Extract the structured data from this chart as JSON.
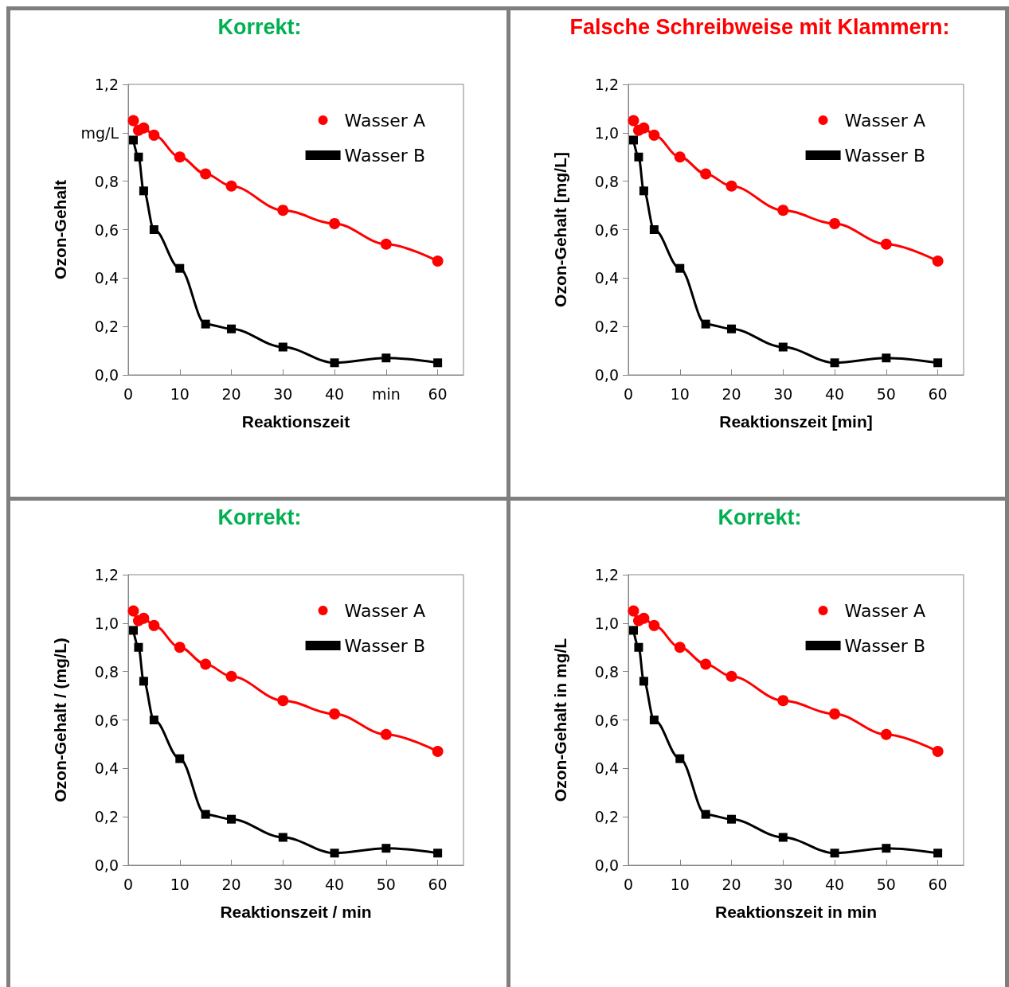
{
  "chart_data": [
    {
      "type": "line",
      "title": "Korrekt:",
      "xlabel": "Reaktionszeit",
      "ylabel": "Ozon-Gehalt",
      "x": [
        1,
        2,
        3,
        5,
        10,
        15,
        20,
        30,
        40,
        50,
        60
      ],
      "xlim": [
        0,
        65
      ],
      "ylim": [
        0,
        1.2
      ],
      "xticks": [
        0,
        10,
        20,
        30,
        40,
        {
          "value": 50,
          "label": "min"
        },
        60
      ],
      "yticks": [
        {
          "value": 0,
          "label": "0,0"
        },
        {
          "value": 0.2,
          "label": "0,2"
        },
        {
          "value": 0.4,
          "label": "0,4"
        },
        {
          "value": 0.6,
          "label": "0,6"
        },
        {
          "value": 0.8,
          "label": "0,8"
        },
        {
          "value": 1,
          "label": "mg/L"
        },
        {
          "value": 1.2,
          "label": "1,2"
        }
      ],
      "grid": false,
      "legend": "top right",
      "series": [
        {
          "name": "Wasser A",
          "color": "#ff0000",
          "marker": "circle",
          "values": [
            1.05,
            1.01,
            1.02,
            0.99,
            0.9,
            0.83,
            0.78,
            0.68,
            0.625,
            0.54,
            0.47
          ]
        },
        {
          "name": "Wasser B",
          "color": "#000000",
          "marker": "square",
          "values": [
            0.97,
            0.9,
            0.76,
            0.6,
            0.44,
            0.21,
            0.19,
            0.115,
            0.05,
            0.07,
            0.05
          ]
        }
      ]
    },
    {
      "type": "line",
      "title": "Falsche Schreibweise mit Klammern:",
      "xlabel": "Reaktionszeit [min]",
      "ylabel": "Ozon-Gehalt [mg/L]",
      "x": [
        1,
        2,
        3,
        5,
        10,
        15,
        20,
        30,
        40,
        50,
        60
      ],
      "xlim": [
        0,
        65
      ],
      "ylim": [
        0,
        1.2
      ],
      "xticks": [
        0,
        10,
        20,
        30,
        40,
        50,
        60
      ],
      "yticks": [
        {
          "value": 0,
          "label": "0,0"
        },
        {
          "value": 0.2,
          "label": "0,2"
        },
        {
          "value": 0.4,
          "label": "0,4"
        },
        {
          "value": 0.6,
          "label": "0,6"
        },
        {
          "value": 0.8,
          "label": "0,8"
        },
        {
          "value": 1,
          "label": "1,0"
        },
        {
          "value": 1.2,
          "label": "1,2"
        }
      ],
      "grid": false,
      "legend": "top right",
      "series": [
        {
          "name": "Wasser A",
          "color": "#ff0000",
          "marker": "circle",
          "values": [
            1.05,
            1.01,
            1.02,
            0.99,
            0.9,
            0.83,
            0.78,
            0.68,
            0.625,
            0.54,
            0.47
          ]
        },
        {
          "name": "Wasser B",
          "color": "#000000",
          "marker": "square",
          "values": [
            0.97,
            0.9,
            0.76,
            0.6,
            0.44,
            0.21,
            0.19,
            0.115,
            0.05,
            0.07,
            0.05
          ]
        }
      ]
    },
    {
      "type": "line",
      "title": "Korrekt:",
      "xlabel": "Reaktionszeit / min",
      "ylabel": "Ozon-Gehalt / (mg/L)",
      "x": [
        1,
        2,
        3,
        5,
        10,
        15,
        20,
        30,
        40,
        50,
        60
      ],
      "xlim": [
        0,
        65
      ],
      "ylim": [
        0,
        1.2
      ],
      "xticks": [
        0,
        10,
        20,
        30,
        40,
        50,
        60
      ],
      "yticks": [
        {
          "value": 0,
          "label": "0,0"
        },
        {
          "value": 0.2,
          "label": "0,2"
        },
        {
          "value": 0.4,
          "label": "0,4"
        },
        {
          "value": 0.6,
          "label": "0,6"
        },
        {
          "value": 0.8,
          "label": "0,8"
        },
        {
          "value": 1,
          "label": "1,0"
        },
        {
          "value": 1.2,
          "label": "1,2"
        }
      ],
      "grid": false,
      "legend": "top right",
      "series": [
        {
          "name": "Wasser A",
          "color": "#ff0000",
          "marker": "circle",
          "values": [
            1.05,
            1.01,
            1.02,
            0.99,
            0.9,
            0.83,
            0.78,
            0.68,
            0.625,
            0.54,
            0.47
          ]
        },
        {
          "name": "Wasser B",
          "color": "#000000",
          "marker": "square",
          "values": [
            0.97,
            0.9,
            0.76,
            0.6,
            0.44,
            0.21,
            0.19,
            0.115,
            0.05,
            0.07,
            0.05
          ]
        }
      ]
    },
    {
      "type": "line",
      "title": "Korrekt:",
      "xlabel": "Reaktionszeit in min",
      "ylabel": "Ozon-Gehalt in mg/L",
      "x": [
        1,
        2,
        3,
        5,
        10,
        15,
        20,
        30,
        40,
        50,
        60
      ],
      "xlim": [
        0,
        65
      ],
      "ylim": [
        0,
        1.2
      ],
      "xticks": [
        0,
        10,
        20,
        30,
        40,
        50,
        60
      ],
      "yticks": [
        {
          "value": 0,
          "label": "0,0"
        },
        {
          "value": 0.2,
          "label": "0,2"
        },
        {
          "value": 0.4,
          "label": "0,4"
        },
        {
          "value": 0.6,
          "label": "0,6"
        },
        {
          "value": 0.8,
          "label": "0,8"
        },
        {
          "value": 1,
          "label": "1,0"
        },
        {
          "value": 1.2,
          "label": "1,2"
        }
      ],
      "grid": false,
      "legend": "top right",
      "series": [
        {
          "name": "Wasser A",
          "color": "#ff0000",
          "marker": "circle",
          "values": [
            1.05,
            1.01,
            1.02,
            0.99,
            0.9,
            0.83,
            0.78,
            0.68,
            0.625,
            0.54,
            0.47
          ]
        },
        {
          "name": "Wasser B",
          "color": "#000000",
          "marker": "square",
          "values": [
            0.97,
            0.9,
            0.76,
            0.6,
            0.44,
            0.21,
            0.19,
            0.115,
            0.05,
            0.07,
            0.05
          ]
        }
      ]
    }
  ]
}
